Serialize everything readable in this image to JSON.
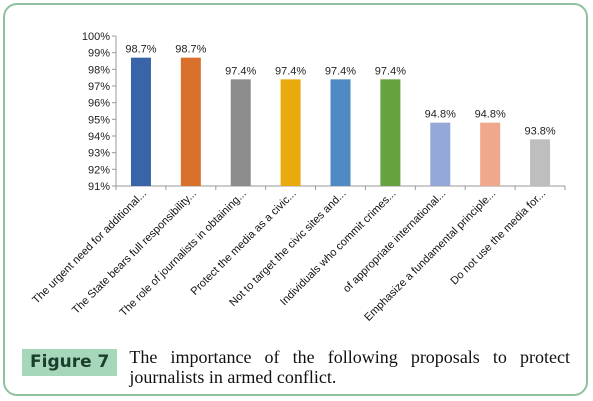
{
  "figure": {
    "badge": "Figure 7",
    "caption": "The importance of the following proposals to protect journalists in armed conflict."
  },
  "chart_data": {
    "type": "bar",
    "categories": [
      "The urgent need for additional...",
      "The State bears full responsibility...",
      "The role of journalists in obtaining...",
      "Protect the media as a civic...",
      "Not to target the civic sites and...",
      "Individuals who commit crimes...",
      "of appropriate international...",
      "Emphasize a fundamental principle...",
      "Do not use the media for..."
    ],
    "values": [
      98.7,
      98.7,
      97.4,
      97.4,
      97.4,
      97.4,
      94.8,
      94.8,
      93.8
    ],
    "data_labels": [
      "98.7%",
      "98.7%",
      "97.4%",
      "97.4%",
      "97.4%",
      "97.4%",
      "94.8%",
      "94.8%",
      "93.8%"
    ],
    "colors": [
      "#3a64a8",
      "#d8702c",
      "#8c8c8c",
      "#e8aa0e",
      "#4f8ac4",
      "#66a23e",
      "#95a9d8",
      "#f0a88c",
      "#bebebe"
    ],
    "ylim": [
      91,
      100
    ],
    "yticks": [
      "91%",
      "92%",
      "93%",
      "94%",
      "95%",
      "96%",
      "97%",
      "98%",
      "99%",
      "100%"
    ],
    "grid": false,
    "title": "",
    "xlabel": "",
    "ylabel": ""
  }
}
